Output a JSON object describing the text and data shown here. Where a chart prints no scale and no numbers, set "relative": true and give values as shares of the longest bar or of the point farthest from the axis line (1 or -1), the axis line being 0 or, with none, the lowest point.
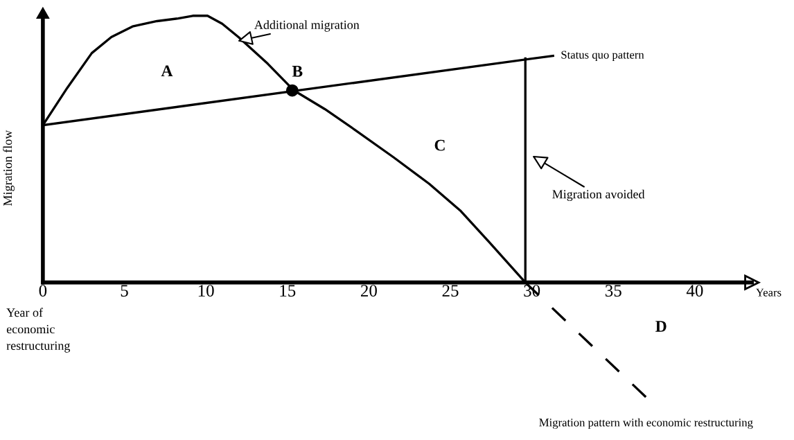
{
  "chart_data": {
    "type": "line",
    "relative": true,
    "xlabel": "Years",
    "ylabel": "Migration flow",
    "xlim": [
      0,
      43.5
    ],
    "xticks": [
      0,
      5,
      10,
      15,
      20,
      25,
      30,
      35,
      40
    ],
    "tick_labels": "x",
    "grid": false,
    "legend": false,
    "series": [
      {
        "color": "#000000",
        "x": [
          0,
          1.5,
          3.0,
          4.2,
          5.5,
          7.0,
          8.3,
          9.2,
          10.1,
          11.0,
          12.0,
          13.8,
          15.4,
          17.3,
          19.2,
          21.5,
          23.7,
          25.6,
          27.4,
          29.6
        ],
        "values": [
          0.59,
          0.73,
          0.86,
          0.92,
          0.96,
          0.98,
          0.99,
          1.0,
          1.0,
          0.97,
          0.92,
          0.82,
          0.72,
          0.65,
          0.57,
          0.47,
          0.37,
          0.27,
          0.15,
          0
        ]
      },
      {
        "name": "Migration pattern with economic restructuring",
        "color": "#000000",
        "line_style": "dashed",
        "x": [
          29.6,
          37.0
        ],
        "values": [
          0,
          -0.43
        ]
      },
      {
        "name": "Status quo pattern",
        "color": "#000000",
        "x": [
          0,
          31.3
        ],
        "values": [
          0.59,
          0.85
        ]
      },
      {
        "color": "#000000",
        "x": [
          29.6,
          29.6
        ],
        "values": [
          0,
          0.84
        ]
      },
      {
        "type": "scatter",
        "color": "#000000",
        "marker": "circle",
        "x": [
          15.3
        ],
        "values": [
          0.72
        ]
      }
    ],
    "annotations": [
      "A",
      "B",
      "C",
      "D",
      "Additional migration",
      "Migration avoided",
      "Year of\neconomic\nrestructuring"
    ]
  }
}
